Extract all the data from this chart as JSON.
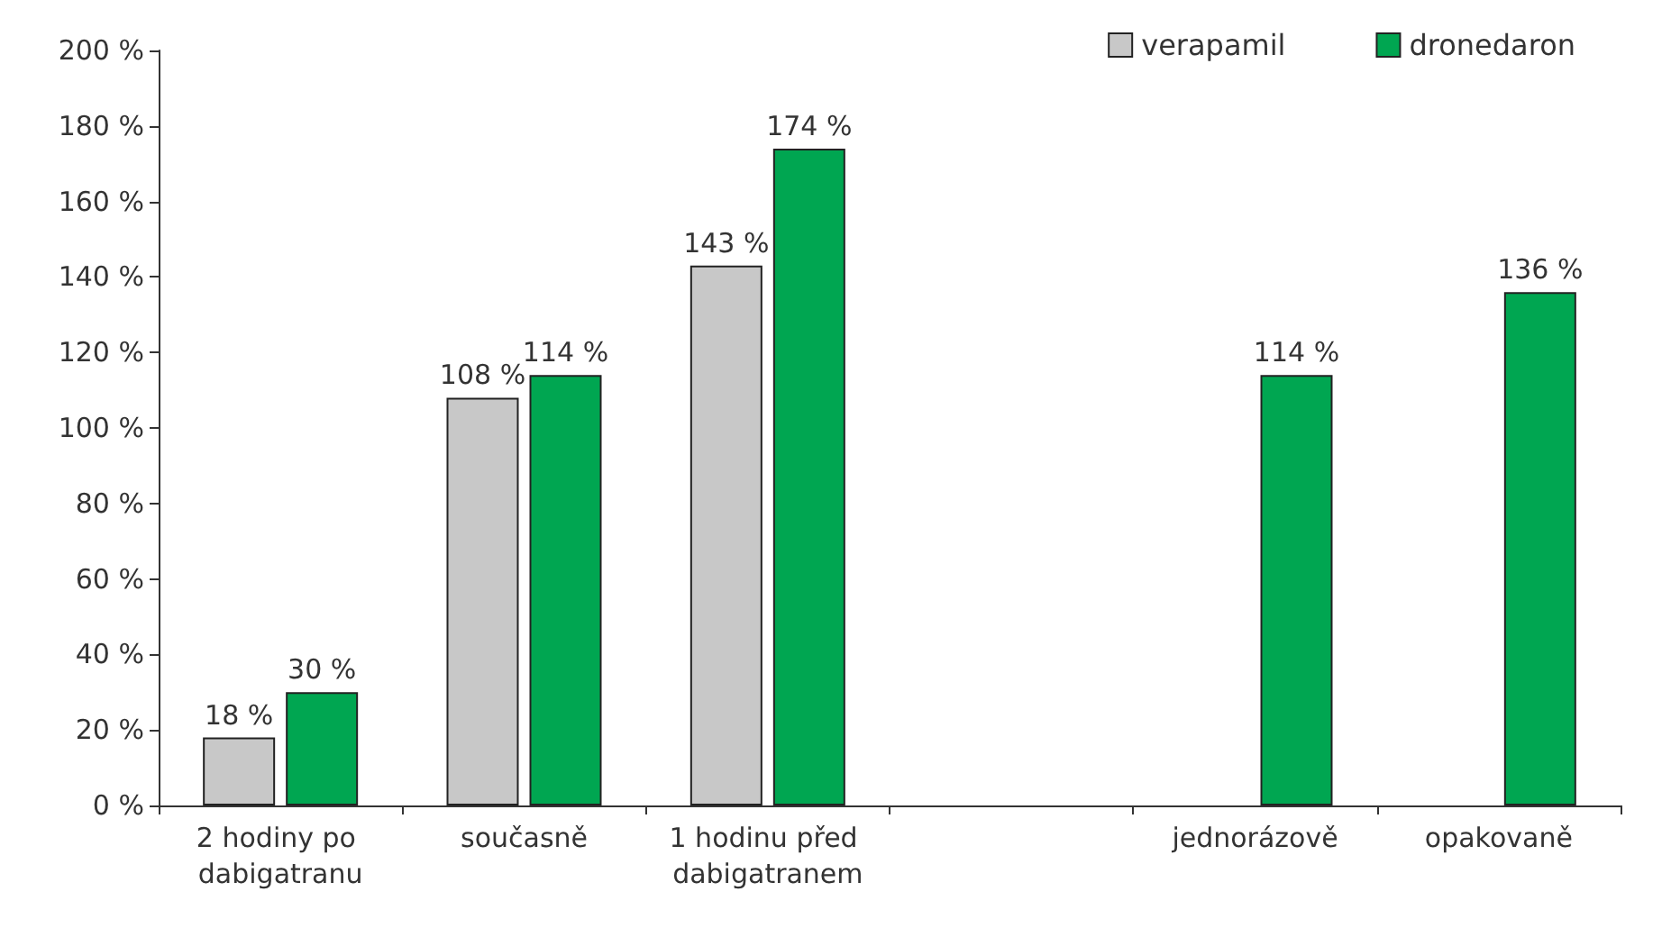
{
  "chart_data": {
    "type": "bar",
    "categories": [
      "2 hodiny po dabigatranu",
      "současně",
      "1 hodinu před dabigatranem",
      null,
      "jednorázově",
      "opakovaně"
    ],
    "series": [
      {
        "name": "verapamil",
        "color": "#c8c8c8",
        "values": [
          18,
          108,
          143,
          null,
          null,
          null
        ],
        "value_labels": [
          "18 %",
          "108 %",
          "143 %",
          null,
          null,
          null
        ]
      },
      {
        "name": "dronedaron",
        "color": "#00a651",
        "values": [
          30,
          114,
          174,
          null,
          114,
          136
        ],
        "value_labels": [
          "30 %",
          "114 %",
          "174 %",
          null,
          "114 %",
          "136 %"
        ]
      }
    ],
    "ylim": [
      0,
      200
    ],
    "yticks": [
      {
        "value": 0,
        "label": "0 %"
      },
      {
        "value": 20,
        "label": "20 %"
      },
      {
        "value": 40,
        "label": "40 %"
      },
      {
        "value": 60,
        "label": "60 %"
      },
      {
        "value": 80,
        "label": "80 %"
      },
      {
        "value": 100,
        "label": "100 %"
      },
      {
        "value": 120,
        "label": "120 %"
      },
      {
        "value": 140,
        "label": "140 %"
      },
      {
        "value": 160,
        "label": "160 %"
      },
      {
        "value": 180,
        "label": "180 %"
      },
      {
        "value": 200,
        "label": "200 %"
      }
    ],
    "grid": false,
    "legend": "top right"
  }
}
